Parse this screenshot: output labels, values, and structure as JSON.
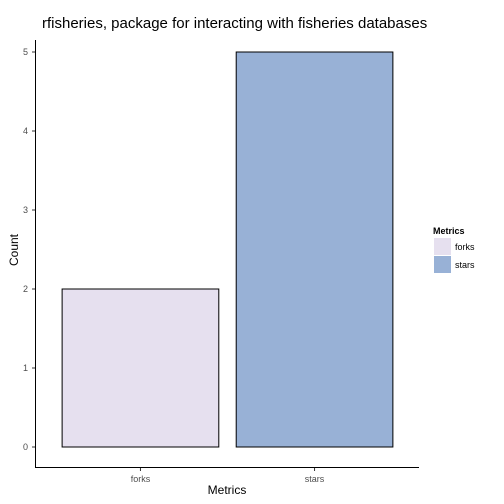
{
  "chart_data": {
    "type": "bar",
    "title": "rfisheries, package for interacting with fisheries databases",
    "xlabel": "Metrics",
    "ylabel": "Count",
    "categories": [
      "forks",
      "stars"
    ],
    "values": [
      2,
      5
    ],
    "ylim": [
      0,
      5
    ],
    "yticks": [
      "0",
      "1",
      "2",
      "3",
      "4",
      "5"
    ],
    "colors": [
      "#e6e0ef",
      "#98b1d6"
    ],
    "bar_outline": "#000000",
    "grid": false,
    "legend": {
      "title": "Metrics",
      "position": "right",
      "entries": [
        "forks",
        "stars"
      ]
    }
  }
}
